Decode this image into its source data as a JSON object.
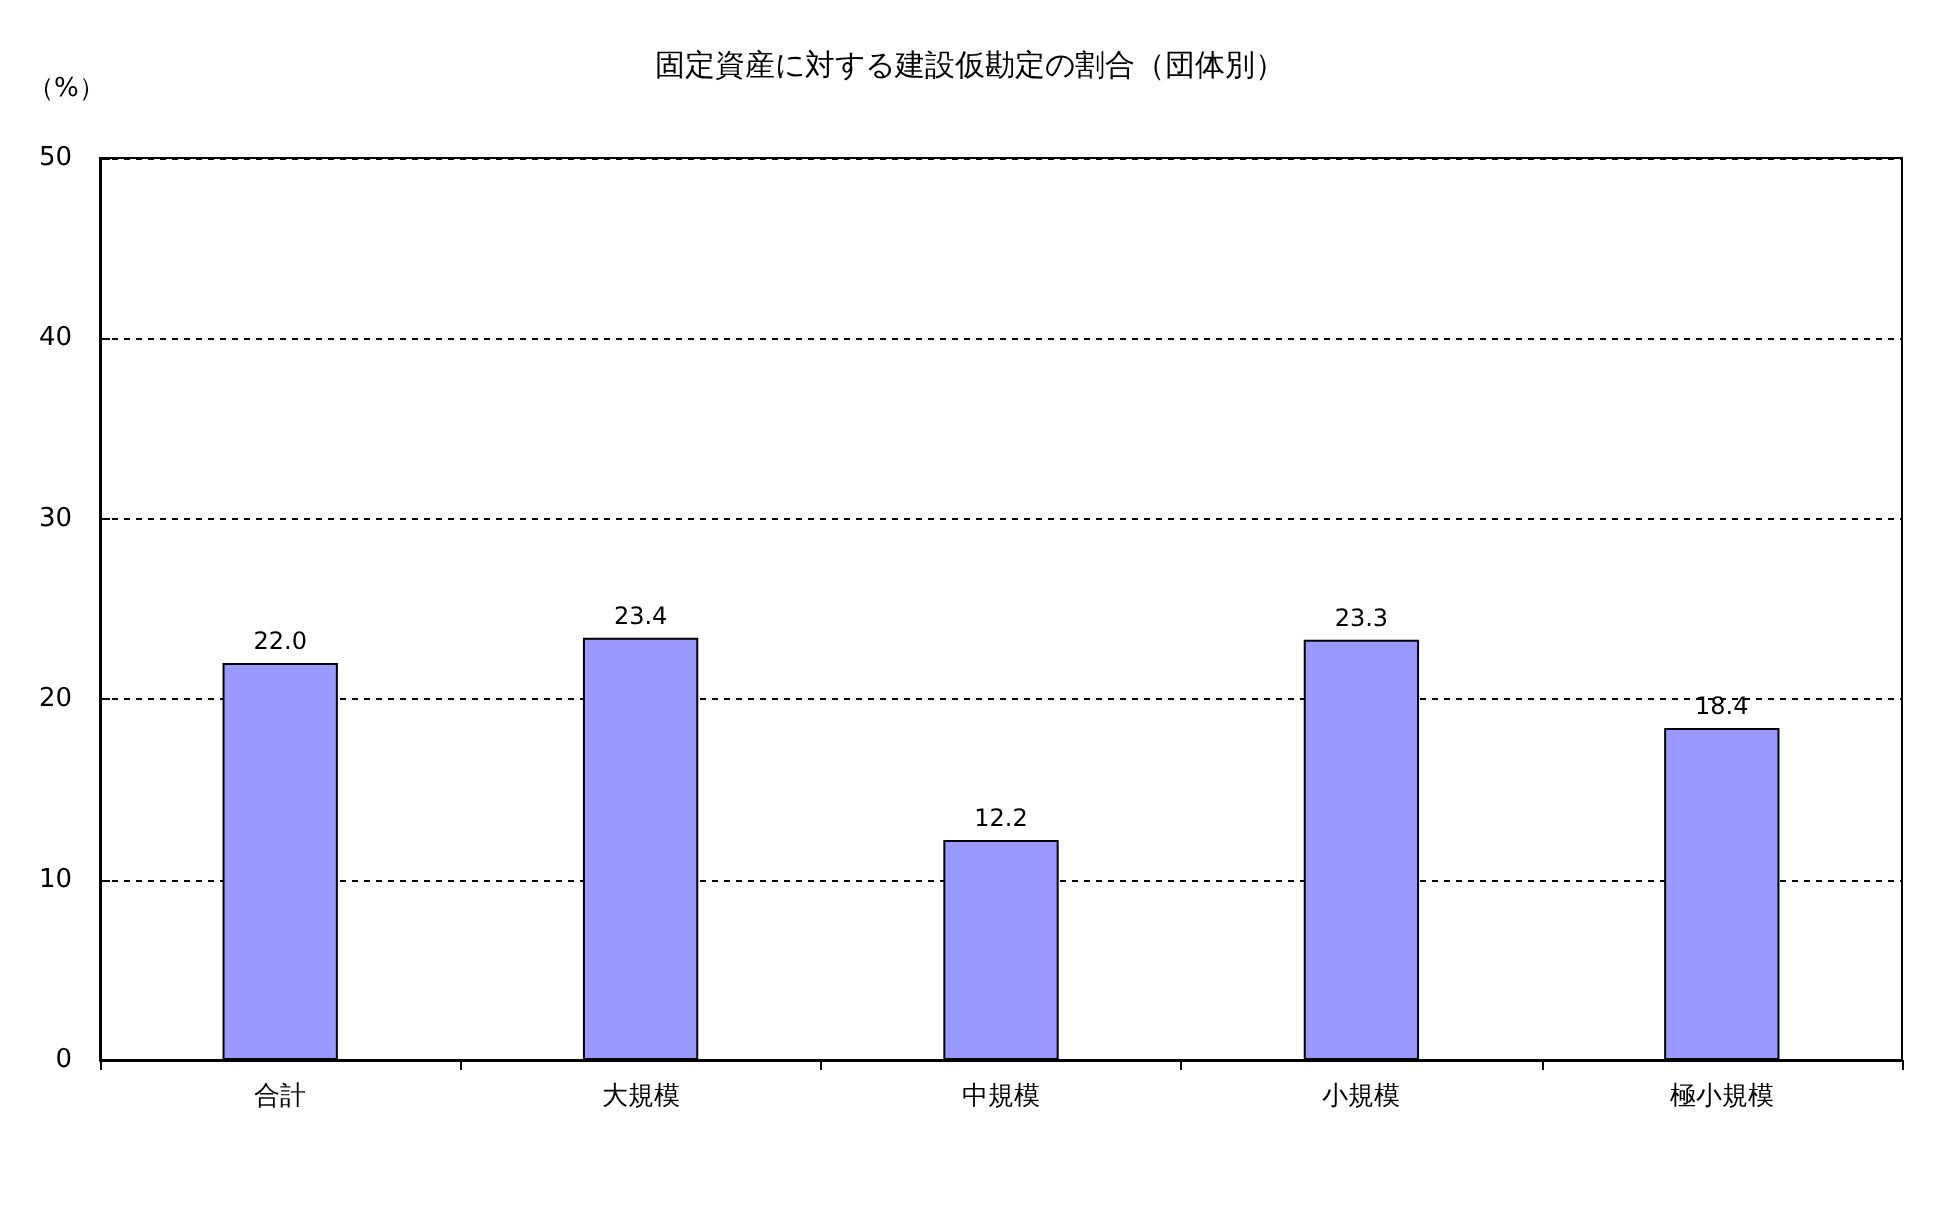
{
  "chart_data": {
    "type": "bar",
    "title": "固定資産に対する建設仮勘定の割合（団体別）",
    "ylabel": "（%）",
    "categories": [
      "合計",
      "大規模",
      "中規模",
      "小規模",
      "極小規模"
    ],
    "values": [
      22.0,
      23.4,
      12.2,
      23.3,
      18.4
    ],
    "value_labels": [
      "22.0",
      "23.4",
      "12.2",
      "23.3",
      "18.4"
    ],
    "color": "#9999ff",
    "ylim": [
      0,
      50
    ],
    "yticks": [
      0,
      10,
      20,
      30,
      40,
      50
    ],
    "grid": "y"
  }
}
